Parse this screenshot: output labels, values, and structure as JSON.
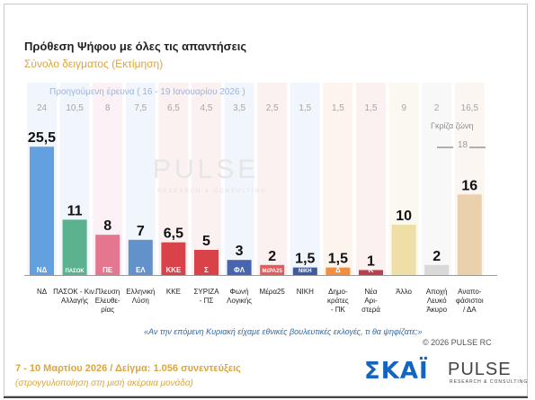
{
  "header": {
    "title": "Πρόθεση Ψήφου με όλες τις απαντήσεις",
    "subtitle": "Σύνολο δειγματος   (Εκτίμηση)"
  },
  "previous_survey_label": "Προηγούμενη έρευνα ( 16 - 19 Ιανουαρίου 2026 )",
  "gray_zone": {
    "label": "Γκρίζα ζώνη",
    "value": "18"
  },
  "watermark": {
    "name": "PULSE",
    "sub": "RESEARCH & CONSULTING"
  },
  "chart_data": {
    "type": "bar",
    "categories": [
      "ΝΔ",
      "ΠΑΣΟΚ - Κιν. Αλλαγής",
      "Πλεύση Ελευθερίας",
      "Ελληνική Λύση",
      "ΚΚΕ",
      "ΣΥΡΙΖΑ - ΠΣ",
      "Φωνή Λογικής",
      "Μέρα25",
      "ΝΙΚΗ",
      "Δημοκράτες - ΠΚ",
      "Νέα Αριστερά",
      "Άλλο",
      "Αποχή Λευκό Άκυρο",
      "Αναποφάσιστοι / ΔΑ"
    ],
    "category_lines": [
      [
        "ΝΔ"
      ],
      [
        "ΠΑΣΟΚ - Κιν.",
        "Αλλαγής"
      ],
      [
        "Πλευση",
        "Ελευθε-",
        "ρίας"
      ],
      [
        "Ελληνική",
        "Λύση"
      ],
      [
        "ΚΚΕ"
      ],
      [
        "ΣΥΡΙΖΑ",
        "- ΠΣ"
      ],
      [
        "Φωνή",
        "Λογικής"
      ],
      [
        "Μέρα25"
      ],
      [
        "ΝΙΚΗ"
      ],
      [
        "Δημο-",
        "κράτες",
        "- ΠΚ"
      ],
      [
        "Νέα",
        "Αρι-",
        "στερά"
      ],
      [
        "Άλλο"
      ],
      [
        "Αποχή",
        "Λευκό",
        "Άκυρο"
      ],
      [
        "Αναπο-",
        "φάσιστοι",
        "/ ΔΑ"
      ]
    ],
    "values": [
      25.5,
      11,
      8,
      7,
      6.5,
      5,
      3,
      2,
      1.5,
      1.5,
      1,
      10,
      2,
      16
    ],
    "value_labels": [
      "25,5",
      "11",
      "8",
      "7",
      "6,5",
      "5",
      "3",
      "2",
      "1,5",
      "1,5",
      "1",
      "10",
      "2",
      "16"
    ],
    "previous_values": [
      24,
      10.5,
      8,
      7.5,
      6.5,
      4.5,
      3.5,
      2.5,
      1.5,
      1.5,
      1.5,
      9,
      2,
      16.5
    ],
    "previous_labels": [
      "24",
      "10,5",
      "8",
      "7,5",
      "6,5",
      "4,5",
      "3,5",
      "2,5",
      "1,5",
      "1,5",
      "1,5",
      "9",
      "2",
      "16,5"
    ],
    "colors": [
      "#4a90d9",
      "#3fa67a",
      "#e0607e",
      "#4a7fc0",
      "#d2232a",
      "#d2232a",
      "#2a4aa0",
      "#e04040",
      "#1f3f8a",
      "#f07c1e",
      "#b02030",
      "#ecd998",
      "#d4d4d4",
      "#e8c9a0"
    ],
    "bg_colors": [
      "#e1ecf8",
      "#e1ecf8",
      "#f8e1e8",
      "#e1ecf8",
      "#f8e1e1",
      "#f8e1e1",
      "#e1ecf8",
      "#f8e1e1",
      "#e1ecf8",
      "#fbe8d8",
      "#f8e1e1",
      "#f6f0dc",
      "#efefef",
      "#f6ecdf"
    ],
    "logos": [
      "ΝΔ",
      "ΠΑΣΟΚ",
      "ΠΕ",
      "ΕΛ",
      "ΚΚΕ",
      "Σ",
      "ΦΛ",
      "ΜέΡΑ25",
      "ΝΙΚΗ",
      "Δ",
      "Κ",
      "",
      "",
      ""
    ],
    "ylim": [
      0,
      27
    ]
  },
  "footer": {
    "quote": "«Αν την επόμενη Κυριακή είχαμε εθνικές βουλευτικές εκλογές, τι θα ψηφίζατε;»",
    "copyright": "©  2026  PULSE RC",
    "fieldwork": "7 - 10  Μαρτίου 2026  /  Δείγμα:  1.056 συνεντεύξεις",
    "rounding_note": "(στρογγυλοποίηση στη μισή ακέραια μονάδα)",
    "logo_skai": "ΣΚΑΪ",
    "logo_pulse": "PULSE",
    "logo_pulse_sub": "RESEARCH & CONSULTING"
  }
}
